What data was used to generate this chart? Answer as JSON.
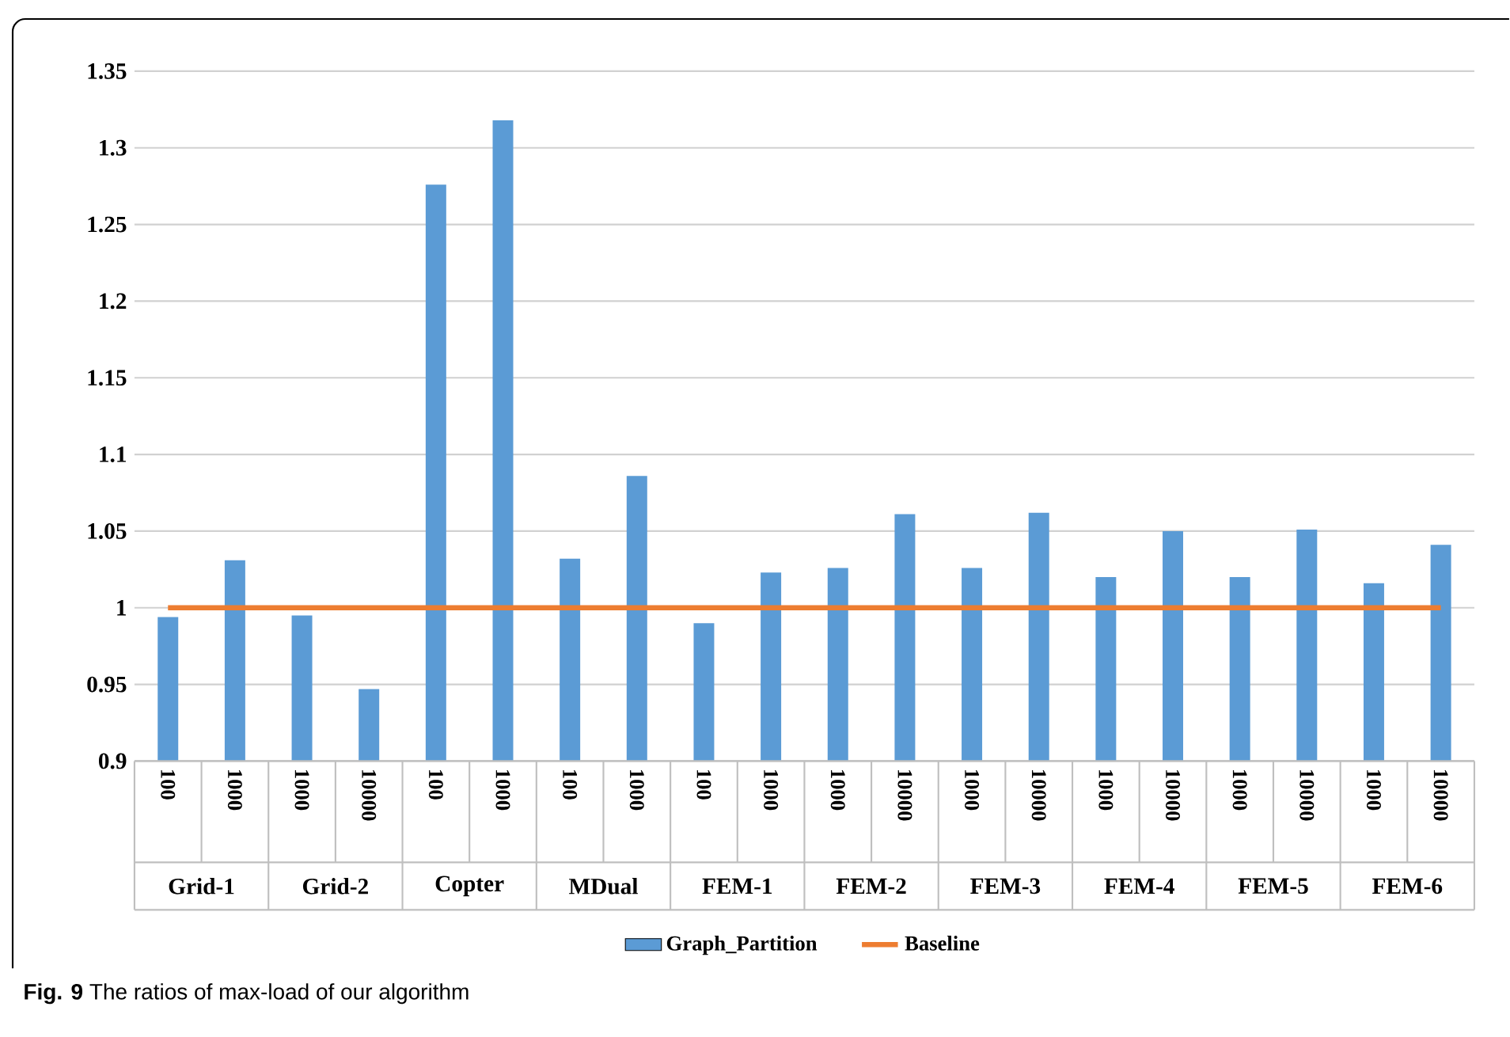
{
  "chart_data": {
    "type": "bar",
    "categories": [
      "100",
      "1000",
      "1000",
      "10000",
      "100",
      "1000",
      "100",
      "1000",
      "100",
      "1000",
      "1000",
      "10000",
      "1000",
      "10000",
      "1000",
      "10000",
      "1000",
      "10000",
      "1000",
      "10000"
    ],
    "series": [
      {
        "name": "Graph_Partition",
        "color": "#5b9bd5",
        "values": [
          0.994,
          1.031,
          0.995,
          0.947,
          1.276,
          1.318,
          1.032,
          1.086,
          0.99,
          1.023,
          1.026,
          1.061,
          1.026,
          1.062,
          1.02,
          1.05,
          1.02,
          1.051,
          1.016,
          1.041
        ]
      },
      {
        "name": "Baseline",
        "type": "line",
        "color": "#ed7d31",
        "values": [
          1,
          1,
          1,
          1,
          1,
          1,
          1,
          1,
          1,
          1,
          1,
          1,
          1,
          1,
          1,
          1,
          1,
          1,
          1,
          1
        ]
      }
    ],
    "ylim": [
      0.9,
      1.35
    ],
    "yticks": [
      0.9,
      0.95,
      1,
      1.05,
      1.1,
      1.15,
      1.2,
      1.25,
      1.3,
      1.35
    ],
    "grid": "y",
    "legend": "bottom",
    "annotations": [
      "Grid-1",
      "Grid-2",
      "Copter",
      "MDual",
      "FEM-1",
      "FEM-2",
      "FEM-3",
      "FEM-4",
      "FEM-5",
      "FEM-6",
      "**Fig. 9**  The ratios of max-load of our algorithm"
    ]
  }
}
